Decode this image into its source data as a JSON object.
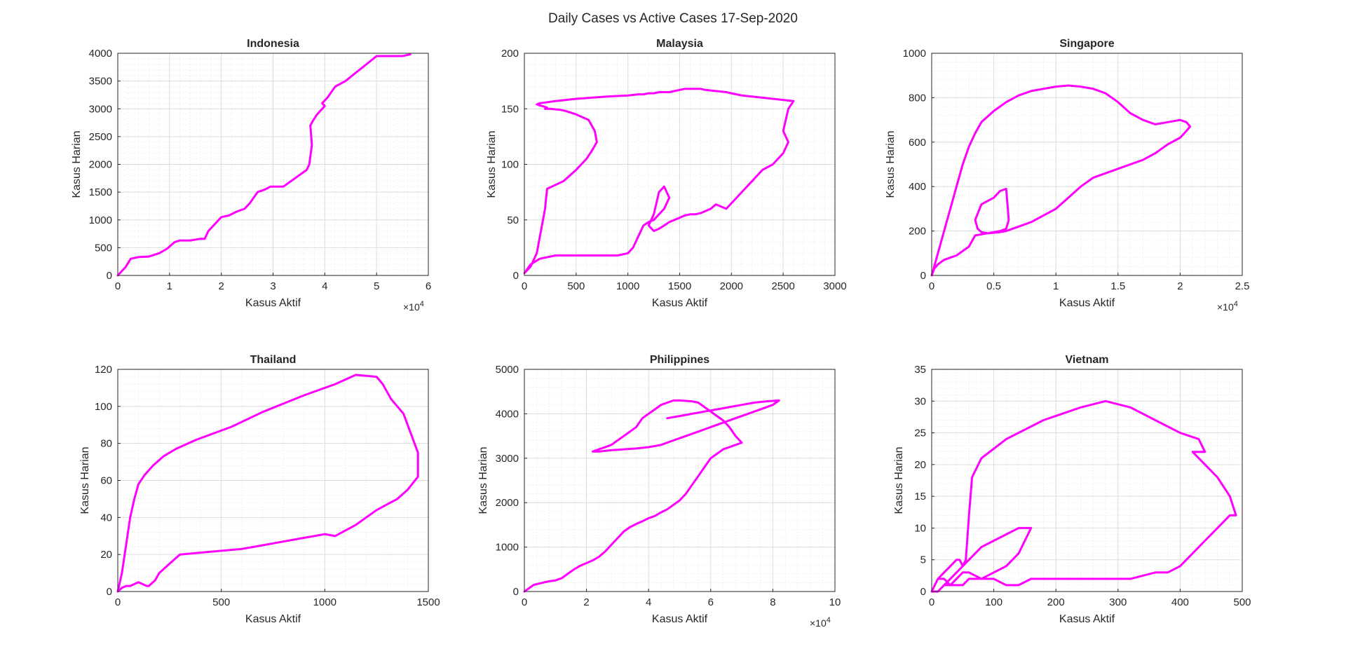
{
  "figure": {
    "title": "Daily Cases vs Active Cases 17-Sep-2020",
    "line_color": "#ff00ff",
    "grid": true,
    "minor_grid": true
  },
  "chart_data": [
    {
      "type": "line",
      "title": "Indonesia",
      "xlabel": "Kasus Aktif",
      "ylabel": "Kasus Harian",
      "x_exponent": "×10^4",
      "xlim": [
        0,
        60000
      ],
      "ylim": [
        0,
        4000
      ],
      "xticks": [
        0,
        10000,
        20000,
        30000,
        40000,
        50000,
        60000
      ],
      "xtick_labels": [
        "0",
        "1",
        "2",
        "3",
        "4",
        "5",
        "6"
      ],
      "yticks": [
        0,
        500,
        1000,
        1500,
        2000,
        2500,
        3000,
        3500,
        4000
      ],
      "ytick_labels": [
        "0",
        "500",
        "1000",
        "1500",
        "2000",
        "2500",
        "3000",
        "3500",
        "4000"
      ],
      "series": [
        {
          "x": [
            0,
            1500,
            2500,
            4000,
            6000,
            8000,
            9500,
            11000,
            12000,
            14000,
            16000,
            16800,
            17500,
            18500,
            20000,
            21500,
            23000,
            24500,
            25500,
            27000,
            28500,
            29500,
            30500,
            32000,
            33500,
            35000,
            36500,
            37000,
            37500,
            37200,
            37800,
            38500,
            39000,
            39500,
            40000,
            39500,
            40500,
            42000,
            44000,
            46000,
            48000,
            50000,
            52000,
            55000,
            55500,
            56000,
            56500
          ],
          "y": [
            0,
            150,
            300,
            330,
            340,
            400,
            480,
            600,
            630,
            630,
            660,
            660,
            800,
            900,
            1050,
            1080,
            1150,
            1200,
            1300,
            1500,
            1550,
            1600,
            1600,
            1600,
            1700,
            1800,
            1900,
            2000,
            2350,
            2700,
            2800,
            2900,
            2950,
            3000,
            3050,
            3100,
            3200,
            3400,
            3500,
            3650,
            3800,
            3950,
            3950,
            3950,
            3960,
            3970,
            3980
          ]
        }
      ]
    },
    {
      "type": "line",
      "title": "Malaysia",
      "xlabel": "Kasus Aktif",
      "ylabel": "Kasus Harian",
      "x_exponent": "",
      "xlim": [
        0,
        3000
      ],
      "ylim": [
        0,
        200
      ],
      "xticks": [
        0,
        500,
        1000,
        1500,
        2000,
        2500,
        3000
      ],
      "xtick_labels": [
        "0",
        "500",
        "1000",
        "1500",
        "2000",
        "2500",
        "3000"
      ],
      "yticks": [
        0,
        50,
        100,
        150,
        200
      ],
      "ytick_labels": [
        "0",
        "50",
        "100",
        "150",
        "200"
      ],
      "series": [
        {
          "x": [
            0,
            60,
            120,
            160,
            200,
            210,
            220,
            380,
            500,
            550,
            600,
            650,
            700,
            680,
            620,
            500,
            400,
            350,
            250,
            200,
            220,
            190,
            150,
            120,
            150,
            300,
            500,
            800,
            1000,
            1100,
            1150,
            1200,
            1250,
            1300,
            1350,
            1400,
            1450,
            1500,
            1550,
            1600,
            1650,
            1700,
            1750,
            1850,
            1950,
            2000,
            2050,
            2100,
            2200,
            2300,
            2400,
            2500,
            2600,
            2550,
            2500,
            2550,
            2500,
            2400,
            2300,
            2200,
            2100,
            2050,
            2000,
            1950,
            1900,
            1850,
            1800,
            1750,
            1700,
            1650,
            1600,
            1550,
            1500,
            1450,
            1400,
            1350,
            1300,
            1250,
            1200,
            1250,
            1300,
            1350,
            1400,
            1350,
            1300,
            1250,
            1200,
            1150,
            1100,
            1050,
            1000,
            900,
            700,
            500,
            300,
            150,
            60,
            30,
            0
          ],
          "y": [
            2,
            8,
            20,
            40,
            60,
            70,
            78,
            85,
            95,
            100,
            105,
            112,
            120,
            130,
            140,
            145,
            148,
            149,
            150,
            150,
            151,
            152,
            153,
            154,
            155,
            157,
            159,
            161,
            162,
            163,
            163,
            164,
            164,
            165,
            165,
            165,
            166,
            167,
            168,
            168,
            168,
            168,
            167,
            166,
            165,
            164,
            163,
            162,
            161,
            160,
            159,
            158,
            157,
            150,
            130,
            120,
            110,
            100,
            95,
            85,
            75,
            70,
            65,
            60,
            62,
            64,
            60,
            58,
            56,
            55,
            55,
            54,
            52,
            50,
            48,
            45,
            42,
            40,
            45,
            55,
            75,
            80,
            70,
            60,
            55,
            50,
            48,
            45,
            35,
            25,
            20,
            18,
            18,
            18,
            18,
            15,
            10,
            6,
            2
          ]
        }
      ]
    },
    {
      "type": "line",
      "title": "Singapore",
      "xlabel": "Kasus Aktif",
      "ylabel": "Kasus Harian",
      "x_exponent": "×10^4",
      "xlim": [
        0,
        25000
      ],
      "ylim": [
        0,
        1000
      ],
      "xticks": [
        0,
        5000,
        10000,
        15000,
        20000,
        25000
      ],
      "xtick_labels": [
        "0",
        "0.5",
        "1",
        "1.5",
        "2",
        "2.5"
      ],
      "yticks": [
        0,
        200,
        400,
        600,
        800,
        1000
      ],
      "ytick_labels": [
        "0",
        "200",
        "400",
        "600",
        "800",
        "1000"
      ],
      "series": [
        {
          "x": [
            0,
            500,
            1000,
            1500,
            2000,
            2500,
            3000,
            3500,
            4000,
            5000,
            6000,
            7000,
            8000,
            9000,
            10000,
            11000,
            12000,
            13000,
            14000,
            15000,
            16000,
            17000,
            18000,
            19000,
            20000,
            20500,
            20800,
            20500,
            20000,
            19000,
            18000,
            17000,
            16000,
            15000,
            14000,
            13000,
            12000,
            11000,
            10000,
            9000,
            8000,
            7000,
            6500,
            6000,
            5500,
            5000,
            4500,
            4000,
            3700,
            3500,
            4000,
            5000,
            5500,
            6000,
            6200,
            6000,
            5500,
            5000,
            4500,
            4000,
            3500,
            3000,
            2500,
            2000,
            1500,
            1000,
            500,
            200,
            0
          ],
          "y": [
            0,
            100,
            200,
            300,
            400,
            500,
            580,
            640,
            690,
            740,
            780,
            810,
            830,
            840,
            850,
            855,
            850,
            840,
            820,
            780,
            730,
            700,
            680,
            690,
            700,
            690,
            670,
            650,
            620,
            590,
            550,
            520,
            500,
            480,
            460,
            440,
            400,
            350,
            300,
            270,
            240,
            220,
            210,
            200,
            195,
            192,
            190,
            195,
            210,
            250,
            320,
            350,
            380,
            390,
            250,
            210,
            200,
            195,
            190,
            185,
            180,
            130,
            110,
            90,
            80,
            70,
            50,
            30,
            0
          ]
        }
      ]
    },
    {
      "type": "line",
      "title": "Thailand",
      "xlabel": "Kasus Aktif",
      "ylabel": "Kasus Harian",
      "x_exponent": "",
      "xlim": [
        0,
        1500
      ],
      "ylim": [
        0,
        120
      ],
      "xticks": [
        0,
        500,
        1000,
        1500
      ],
      "xtick_labels": [
        "0",
        "500",
        "1000",
        "1500"
      ],
      "yticks": [
        0,
        20,
        40,
        60,
        80,
        100,
        120
      ],
      "ytick_labels": [
        "0",
        "20",
        "40",
        "60",
        "80",
        "100",
        "120"
      ],
      "series": [
        {
          "x": [
            0,
            20,
            40,
            60,
            80,
            100,
            130,
            170,
            220,
            280,
            380,
            550,
            700,
            900,
            1050,
            1150,
            1250,
            1280,
            1300,
            1320,
            1350,
            1380,
            1400,
            1420,
            1450,
            1450,
            1400,
            1350,
            1300,
            1250,
            1200,
            1150,
            1100,
            1050,
            1000,
            950,
            900,
            850,
            800,
            750,
            700,
            650,
            600,
            500,
            400,
            300,
            250,
            200,
            180,
            160,
            150,
            140,
            120,
            100,
            80,
            60,
            40,
            20,
            0
          ],
          "y": [
            0,
            10,
            25,
            40,
            50,
            58,
            63,
            68,
            73,
            77,
            82,
            89,
            97,
            106,
            112,
            117,
            116,
            112,
            108,
            104,
            100,
            96,
            90,
            84,
            75,
            62,
            55,
            50,
            47,
            44,
            40,
            36,
            33,
            30,
            31,
            30,
            29,
            28,
            27,
            26,
            25,
            24,
            23,
            22,
            21,
            20,
            15,
            10,
            6,
            4,
            3,
            3,
            4,
            5,
            4,
            3,
            3,
            2,
            0
          ]
        }
      ]
    },
    {
      "type": "line",
      "title": "Philippines",
      "xlabel": "Kasus Aktif",
      "ylabel": "Kasus Harian",
      "x_exponent": "×10^4",
      "xlim": [
        0,
        100000
      ],
      "ylim": [
        0,
        5000
      ],
      "xticks": [
        0,
        20000,
        40000,
        60000,
        80000,
        100000
      ],
      "xtick_labels": [
        "0",
        "2",
        "4",
        "6",
        "8",
        "10"
      ],
      "yticks": [
        0,
        1000,
        2000,
        3000,
        4000,
        5000
      ],
      "ytick_labels": [
        "0",
        "1000",
        "2000",
        "3000",
        "4000",
        "5000"
      ],
      "series": [
        {
          "x": [
            0,
            3000,
            6000,
            8000,
            10000,
            12000,
            14000,
            16000,
            18000,
            20000,
            22000,
            24000,
            26000,
            28000,
            30000,
            32000,
            34000,
            36000,
            38000,
            40000,
            42000,
            44000,
            46000,
            48000,
            50000,
            52000,
            54000,
            56000,
            58000,
            60000,
            62000,
            64000,
            66000,
            68000,
            70000,
            68000,
            66000,
            64000,
            62000,
            60000,
            58000,
            56000,
            54000,
            52000,
            50000,
            48000,
            46000,
            44000,
            42000,
            40000,
            38000,
            36000,
            34000,
            32000,
            30000,
            28000,
            26000,
            24000,
            22000,
            24000,
            28000,
            32000,
            36000,
            40000,
            44000,
            48000,
            52000,
            56000,
            60000,
            64000,
            68000,
            72000,
            76000,
            80000,
            82000,
            78000,
            74000,
            70000,
            66000,
            62000,
            58000,
            54000,
            50000,
            46000
          ],
          "y": [
            0,
            150,
            200,
            230,
            250,
            300,
            400,
            500,
            580,
            640,
            700,
            780,
            900,
            1050,
            1200,
            1350,
            1450,
            1520,
            1580,
            1650,
            1700,
            1780,
            1850,
            1950,
            2050,
            2200,
            2400,
            2600,
            2800,
            3000,
            3100,
            3200,
            3250,
            3300,
            3350,
            3500,
            3700,
            3850,
            3950,
            4050,
            4150,
            4250,
            4280,
            4290,
            4300,
            4300,
            4250,
            4200,
            4100,
            4000,
            3900,
            3700,
            3600,
            3500,
            3400,
            3300,
            3250,
            3200,
            3150,
            3150,
            3180,
            3200,
            3220,
            3250,
            3300,
            3400,
            3500,
            3600,
            3700,
            3800,
            3900,
            4000,
            4100,
            4200,
            4300,
            4280,
            4250,
            4200,
            4150,
            4100,
            4050,
            4000,
            3950,
            3900
          ]
        }
      ]
    },
    {
      "type": "line",
      "title": "Vietnam",
      "xlabel": "Kasus Aktif",
      "ylabel": "Kasus Harian",
      "x_exponent": "",
      "xlim": [
        0,
        500
      ],
      "ylim": [
        0,
        35
      ],
      "xticks": [
        0,
        100,
        200,
        300,
        400,
        500
      ],
      "xtick_labels": [
        "0",
        "100",
        "200",
        "300",
        "400",
        "500"
      ],
      "yticks": [
        0,
        5,
        10,
        15,
        20,
        25,
        30,
        35
      ],
      "ytick_labels": [
        "0",
        "5",
        "10",
        "15",
        "20",
        "25",
        "30",
        "35"
      ],
      "series": [
        {
          "x": [
            0,
            10,
            20,
            30,
            40,
            45,
            50,
            55,
            60,
            65,
            80,
            120,
            180,
            240,
            280,
            320,
            360,
            400,
            430,
            440,
            420,
            460,
            480,
            490,
            480,
            460,
            440,
            420,
            400,
            380,
            360,
            320,
            280,
            240,
            200,
            160,
            140,
            120,
            100,
            80,
            60,
            50,
            40,
            30,
            20,
            10,
            5,
            0,
            10,
            20,
            30,
            40,
            50,
            60,
            70,
            80,
            100,
            120,
            140,
            160,
            150,
            140,
            120,
            100,
            80,
            60,
            50,
            40,
            30,
            20,
            10,
            0
          ],
          "y": [
            0,
            2,
            3,
            4,
            5,
            5,
            4,
            5,
            12,
            18,
            21,
            24,
            27,
            29,
            30,
            29,
            27,
            25,
            24,
            22,
            22,
            18,
            15,
            12,
            12,
            10,
            8,
            6,
            4,
            3,
            3,
            2,
            2,
            2,
            2,
            2,
            1,
            1,
            2,
            2,
            3,
            3,
            2,
            1,
            2,
            2,
            1,
            0,
            0,
            1,
            2,
            3,
            4,
            5,
            6,
            7,
            8,
            9,
            10,
            10,
            8,
            6,
            4,
            3,
            2,
            2,
            1,
            1,
            1,
            1,
            0,
            0
          ]
        }
      ]
    }
  ]
}
